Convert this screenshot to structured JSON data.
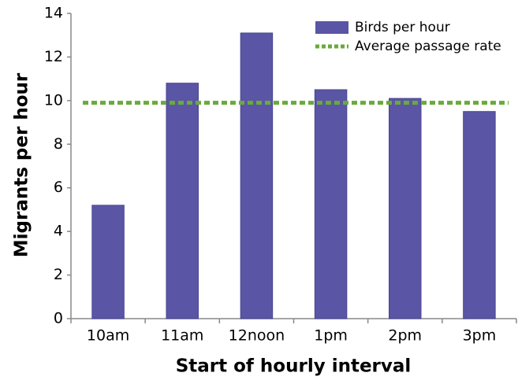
{
  "chart_data": {
    "type": "bar",
    "x_label": "Start of hourly interval",
    "y_label": "Migrants per hour",
    "categories": [
      "10am",
      "11am",
      "12noon",
      "1pm",
      "2pm",
      "3pm"
    ],
    "series": [
      {
        "name": "Birds per hour",
        "type": "bar",
        "color": "#5a55a5",
        "values": [
          5.2,
          10.8,
          13.1,
          10.5,
          10.1,
          9.5
        ]
      },
      {
        "name": "Average passage rate",
        "type": "line",
        "color": "#6aaa3c",
        "values": [
          9.9,
          9.9,
          9.9,
          9.9,
          9.9,
          9.9
        ]
      }
    ],
    "ylim": [
      0,
      14
    ],
    "yticks": [
      0,
      2,
      4,
      6,
      8,
      10,
      12,
      14
    ],
    "legend": "top-right"
  }
}
